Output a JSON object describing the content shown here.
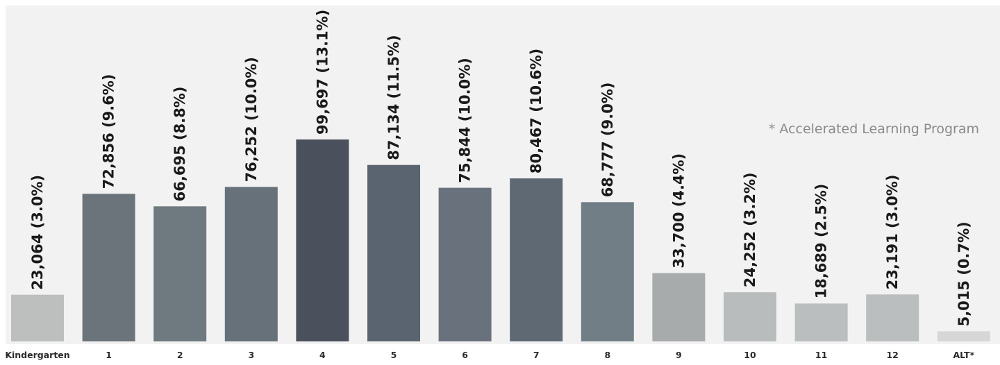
{
  "chart_data": {
    "type": "bar",
    "categories": [
      "Kindergarten",
      "1",
      "2",
      "3",
      "4",
      "5",
      "6",
      "7",
      "8",
      "9",
      "10",
      "11",
      "12",
      "ALT*"
    ],
    "values": [
      23064,
      72856,
      66695,
      76252,
      99697,
      87134,
      75844,
      80467,
      68777,
      33700,
      24252,
      18689,
      23191,
      5015
    ],
    "data_labels": [
      "23,064 (3.0%)",
      "72,856 (9.6%)",
      "66,695 (8.8%)",
      "76,252 (10.0%)",
      "99,697 (13.1%)",
      "87,134 (11.5%)",
      "75,844 (10.0%)",
      "80,467 (10.6%)",
      "68,777 (9.0%)",
      "33,700 (4.4%)",
      "24,252 (3.2%)",
      "18,689 (2.5%)",
      "23,191 (3.0%)",
      "5,015 (0.7%)"
    ],
    "colors": [
      "#bdbfbf",
      "#6b747b",
      "#6f7a80",
      "#66717a",
      "#4a505c",
      "#5a6470",
      "#69727c",
      "#5f6973",
      "#727e86",
      "#a7abab",
      "#b9bcbc",
      "#bbbebe",
      "#bbbebe",
      "#d6d6d6"
    ],
    "annotation": "* Accelerated Learning Program",
    "title": "",
    "xlabel": "",
    "ylabel": "",
    "ylim": [
      0,
      110000
    ],
    "grid": false,
    "background": "#f2f2f2"
  }
}
